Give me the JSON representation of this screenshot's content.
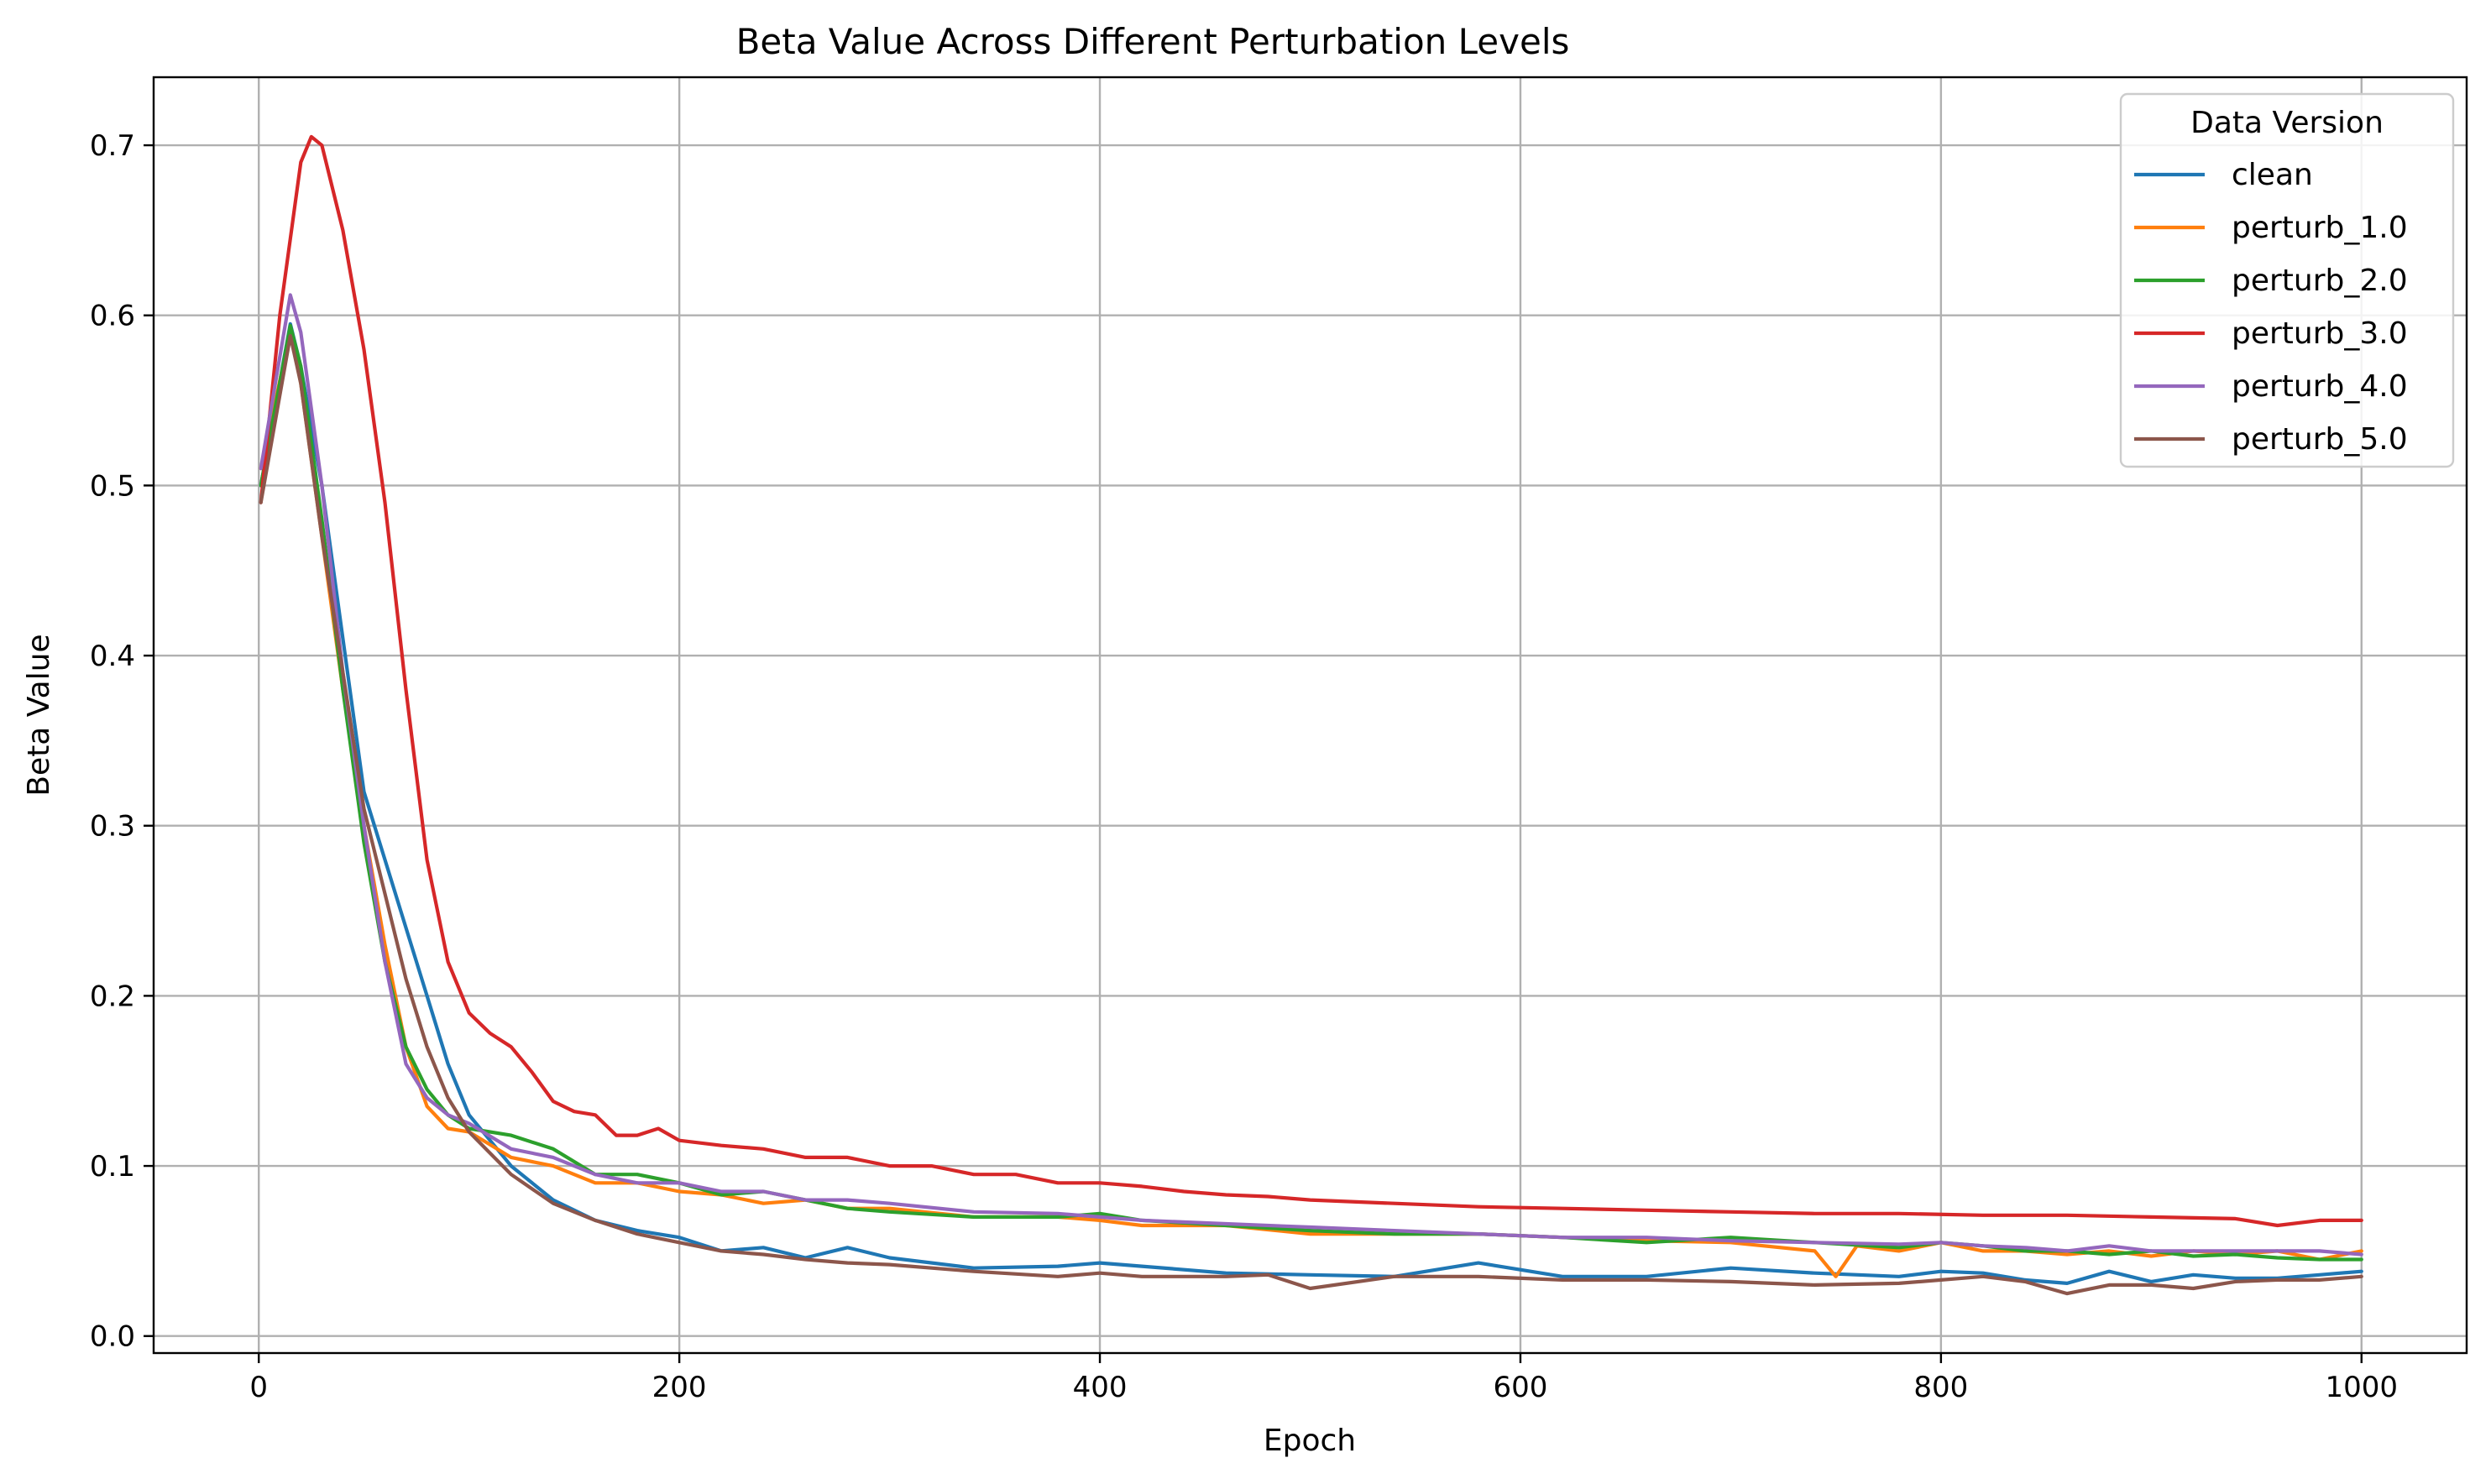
{
  "chart_data": {
    "type": "line",
    "title": "Beta Value Across Different Perturbation Levels",
    "xlabel": "Epoch",
    "ylabel": "Beta Value",
    "xlim": [
      -50,
      1050
    ],
    "ylim": [
      -0.01,
      0.74
    ],
    "xticks": [
      0,
      200,
      400,
      600,
      800,
      1000
    ],
    "yticks": [
      0.0,
      0.1,
      0.2,
      0.3,
      0.4,
      0.5,
      0.6,
      0.7
    ],
    "xtick_labels": [
      "0",
      "200",
      "400",
      "600",
      "800",
      "1000"
    ],
    "ytick_labels": [
      "0.0",
      "0.1",
      "0.2",
      "0.3",
      "0.4",
      "0.5",
      "0.6",
      "0.7"
    ],
    "grid": true,
    "legend": {
      "title": "Data Version",
      "position": "top-right"
    },
    "series": [
      {
        "name": "clean",
        "color": "#1f77b4",
        "x": [
          1,
          15,
          20,
          30,
          40,
          50,
          60,
          70,
          80,
          90,
          100,
          120,
          140,
          160,
          180,
          200,
          220,
          240,
          260,
          280,
          300,
          340,
          380,
          400,
          420,
          460,
          500,
          540,
          580,
          620,
          660,
          700,
          740,
          780,
          800,
          820,
          840,
          860,
          880,
          900,
          920,
          940,
          960,
          980,
          1000
        ],
        "y": [
          0.5,
          0.595,
          0.57,
          0.5,
          0.41,
          0.32,
          0.28,
          0.24,
          0.2,
          0.16,
          0.13,
          0.1,
          0.08,
          0.068,
          0.062,
          0.058,
          0.05,
          0.052,
          0.046,
          0.052,
          0.046,
          0.04,
          0.041,
          0.043,
          0.041,
          0.037,
          0.036,
          0.035,
          0.043,
          0.035,
          0.035,
          0.04,
          0.037,
          0.035,
          0.038,
          0.037,
          0.033,
          0.031,
          0.038,
          0.032,
          0.036,
          0.034,
          0.034,
          0.036,
          0.038
        ]
      },
      {
        "name": "perturb_1.0",
        "color": "#ff7f0e",
        "x": [
          1,
          15,
          20,
          30,
          40,
          50,
          60,
          70,
          80,
          90,
          100,
          120,
          140,
          160,
          180,
          200,
          220,
          240,
          260,
          280,
          300,
          340,
          380,
          400,
          420,
          460,
          500,
          540,
          580,
          620,
          660,
          700,
          740,
          750,
          760,
          780,
          800,
          820,
          840,
          860,
          880,
          900,
          920,
          940,
          960,
          980,
          1000
        ],
        "y": [
          0.51,
          0.59,
          0.56,
          0.47,
          0.38,
          0.3,
          0.23,
          0.17,
          0.135,
          0.122,
          0.12,
          0.105,
          0.1,
          0.09,
          0.09,
          0.085,
          0.083,
          0.078,
          0.08,
          0.075,
          0.075,
          0.07,
          0.07,
          0.068,
          0.065,
          0.065,
          0.06,
          0.06,
          0.06,
          0.058,
          0.056,
          0.055,
          0.05,
          0.035,
          0.053,
          0.05,
          0.055,
          0.05,
          0.05,
          0.048,
          0.05,
          0.047,
          0.05,
          0.048,
          0.05,
          0.045,
          0.05
        ]
      },
      {
        "name": "perturb_2.0",
        "color": "#2ca02c",
        "x": [
          1,
          15,
          20,
          30,
          40,
          50,
          60,
          70,
          80,
          90,
          100,
          120,
          140,
          160,
          180,
          200,
          220,
          240,
          260,
          280,
          300,
          340,
          380,
          400,
          420,
          460,
          500,
          540,
          580,
          620,
          660,
          700,
          740,
          780,
          800,
          820,
          840,
          860,
          880,
          900,
          920,
          940,
          960,
          980,
          1000
        ],
        "y": [
          0.5,
          0.594,
          0.57,
          0.48,
          0.38,
          0.29,
          0.22,
          0.17,
          0.145,
          0.13,
          0.122,
          0.118,
          0.11,
          0.095,
          0.095,
          0.09,
          0.083,
          0.085,
          0.08,
          0.075,
          0.073,
          0.07,
          0.07,
          0.072,
          0.068,
          0.065,
          0.062,
          0.06,
          0.06,
          0.058,
          0.055,
          0.058,
          0.055,
          0.052,
          0.055,
          0.053,
          0.05,
          0.05,
          0.048,
          0.05,
          0.047,
          0.048,
          0.046,
          0.045,
          0.045
        ]
      },
      {
        "name": "perturb_3.0",
        "color": "#d62728",
        "x": [
          1,
          10,
          20,
          25,
          30,
          40,
          50,
          60,
          70,
          80,
          90,
          100,
          110,
          120,
          130,
          140,
          150,
          160,
          170,
          180,
          190,
          200,
          220,
          240,
          260,
          280,
          300,
          320,
          340,
          360,
          380,
          400,
          420,
          440,
          460,
          480,
          500,
          540,
          580,
          620,
          660,
          700,
          740,
          780,
          820,
          860,
          900,
          940,
          960,
          980,
          1000
        ],
        "y": [
          0.49,
          0.6,
          0.69,
          0.705,
          0.7,
          0.65,
          0.58,
          0.49,
          0.38,
          0.28,
          0.22,
          0.19,
          0.178,
          0.17,
          0.155,
          0.138,
          0.132,
          0.13,
          0.118,
          0.118,
          0.122,
          0.115,
          0.112,
          0.11,
          0.105,
          0.105,
          0.1,
          0.1,
          0.095,
          0.095,
          0.09,
          0.09,
          0.088,
          0.085,
          0.083,
          0.082,
          0.08,
          0.078,
          0.076,
          0.075,
          0.074,
          0.073,
          0.072,
          0.072,
          0.071,
          0.071,
          0.07,
          0.069,
          0.065,
          0.068,
          0.068
        ]
      },
      {
        "name": "perturb_4.0",
        "color": "#9467bd",
        "x": [
          1,
          15,
          20,
          30,
          40,
          50,
          60,
          70,
          80,
          90,
          100,
          120,
          140,
          160,
          180,
          200,
          220,
          240,
          260,
          280,
          300,
          340,
          380,
          400,
          420,
          460,
          500,
          540,
          580,
          620,
          660,
          700,
          740,
          780,
          800,
          820,
          840,
          860,
          880,
          900,
          920,
          940,
          960,
          980,
          1000
        ],
        "y": [
          0.51,
          0.612,
          0.59,
          0.5,
          0.39,
          0.3,
          0.22,
          0.16,
          0.14,
          0.13,
          0.125,
          0.11,
          0.105,
          0.095,
          0.09,
          0.09,
          0.085,
          0.085,
          0.08,
          0.08,
          0.078,
          0.073,
          0.072,
          0.07,
          0.068,
          0.066,
          0.064,
          0.062,
          0.06,
          0.058,
          0.058,
          0.056,
          0.055,
          0.054,
          0.055,
          0.053,
          0.052,
          0.05,
          0.053,
          0.05,
          0.05,
          0.05,
          0.05,
          0.05,
          0.048
        ]
      },
      {
        "name": "perturb_5.0",
        "color": "#8c564b",
        "x": [
          1,
          15,
          20,
          30,
          40,
          50,
          60,
          70,
          80,
          90,
          100,
          120,
          140,
          160,
          180,
          200,
          220,
          240,
          260,
          280,
          300,
          340,
          380,
          400,
          420,
          460,
          480,
          500,
          540,
          580,
          620,
          660,
          700,
          740,
          780,
          800,
          820,
          840,
          860,
          880,
          900,
          920,
          940,
          960,
          980,
          1000
        ],
        "y": [
          0.49,
          0.588,
          0.56,
          0.47,
          0.39,
          0.31,
          0.26,
          0.21,
          0.17,
          0.14,
          0.12,
          0.095,
          0.078,
          0.068,
          0.06,
          0.055,
          0.05,
          0.048,
          0.045,
          0.043,
          0.042,
          0.038,
          0.035,
          0.037,
          0.035,
          0.035,
          0.036,
          0.028,
          0.035,
          0.035,
          0.033,
          0.033,
          0.032,
          0.03,
          0.031,
          0.033,
          0.035,
          0.032,
          0.025,
          0.03,
          0.03,
          0.028,
          0.032,
          0.033,
          0.033,
          0.035
        ]
      }
    ]
  }
}
